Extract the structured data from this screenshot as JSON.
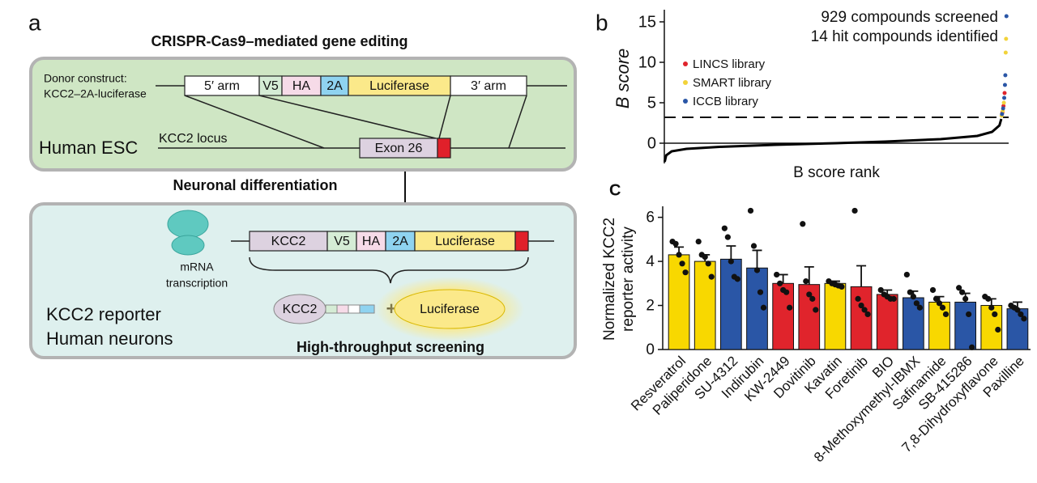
{
  "panel_a": {
    "label": "a",
    "title": "CRISPR-Cas9–mediated gene editing",
    "donor_label": [
      "Donor construct:",
      "KCC2–2A-luciferase"
    ],
    "donor_segments": [
      "5′ arm",
      "V5",
      "HA",
      "2A",
      "Luciferase",
      "3′ arm"
    ],
    "esc_label": "Human ESC",
    "locus_label": "KCC2 locus",
    "exon_label": "Exon 26",
    "step_label": "Neuronal differentiation",
    "reporter_segments": [
      "KCC2",
      "V5",
      "HA",
      "2A",
      "Luciferase"
    ],
    "mrna_label": [
      "mRNA",
      "transcription"
    ],
    "protein_label": "KCC2",
    "plus": "+",
    "luciferase_label": "Luciferase",
    "neuron_label": [
      "KCC2 reporter",
      "Human neurons"
    ],
    "screen_label": "High-throughput screening"
  },
  "chart_data": [
    {
      "type": "scatter",
      "panel_label": "b",
      "ylabel": "B score",
      "xlabel": "B score rank",
      "annotations": [
        "929 compounds screened",
        "14 hit compounds identified"
      ],
      "xlim": [
        0,
        935
      ],
      "ylim": [
        -2.5,
        16.5
      ],
      "yticks": [
        0,
        5,
        10,
        15
      ],
      "threshold": 3.2,
      "series": [
        {
          "mode": "line",
          "color": "#000000",
          "x": [
            1,
            5,
            20,
            60,
            150,
            300,
            465,
            600,
            750,
            850,
            890,
            910,
            915
          ],
          "values": [
            -2.3,
            -1.5,
            -1.0,
            -0.7,
            -0.45,
            -0.2,
            0,
            0.2,
            0.5,
            0.9,
            1.4,
            2.2,
            3.0
          ]
        },
        {
          "mode": "markers",
          "name": "LINCS library",
          "color": "#e0242c",
          "x": [
            924,
            921,
            918
          ],
          "values": [
            6.2,
            4.6,
            3.8
          ]
        },
        {
          "mode": "markers",
          "name": "SMART library",
          "color": "#f2d33a",
          "x": [
            928,
            927,
            922,
            919,
            916
          ],
          "values": [
            12.9,
            11.2,
            5.0,
            4.0,
            3.4
          ]
        },
        {
          "mode": "markers",
          "name": "ICCB library",
          "color": "#2a56a6",
          "x": [
            929,
            926,
            925,
            923,
            920,
            917
          ],
          "values": [
            15.7,
            8.4,
            7.2,
            5.6,
            4.3,
            3.6
          ]
        }
      ]
    },
    {
      "type": "bar",
      "panel_label": "C",
      "ylabel": [
        "Normalized KCC2",
        "reporter activity"
      ],
      "categories": [
        "Resveratrol",
        "Paliperidone",
        "SU-4312",
        "Indirubin",
        "KW-2449",
        "Dovitinib",
        "Kavatin",
        "Foretinib",
        "BIO",
        "8-Methoxymethyl-IBMX",
        "Safinamide",
        "SB-415286",
        "7,8-Dihydroxyflavone",
        "Paxilline"
      ],
      "values": [
        4.3,
        4.0,
        4.1,
        3.7,
        3.0,
        2.95,
        3.0,
        2.85,
        2.5,
        2.35,
        2.15,
        2.15,
        2.0,
        1.85
      ],
      "errors": [
        0.35,
        0.3,
        0.6,
        0.8,
        0.4,
        0.8,
        0.1,
        0.95,
        0.2,
        0.3,
        0.25,
        0.4,
        0.3,
        0.3
      ],
      "colors": [
        "#f8d800",
        "#f8d800",
        "#2a56a6",
        "#2a56a6",
        "#e0242c",
        "#e0242c",
        "#f8d800",
        "#e0242c",
        "#e0242c",
        "#2a56a6",
        "#f8d800",
        "#2a56a6",
        "#f8d800",
        "#2a56a6"
      ],
      "points": [
        [
          4.9,
          4.8,
          4.3,
          3.9,
          3.5
        ],
        [
          4.9,
          4.3,
          4.2,
          3.9,
          3.3
        ],
        [
          5.5,
          5.1,
          4.0,
          3.3,
          3.2
        ],
        [
          6.3,
          4.7,
          3.6,
          2.6,
          1.9
        ],
        [
          3.4,
          3.0,
          2.7,
          2.6,
          1.9
        ],
        [
          5.7,
          3.1,
          2.5,
          2.3,
          1.8
        ],
        [
          3.1,
          3.0,
          2.95,
          2.9,
          2.85
        ],
        [
          6.3,
          2.3,
          2.0,
          1.8,
          1.6
        ],
        [
          2.7,
          2.5,
          2.4,
          2.3,
          2.3
        ],
        [
          3.4,
          2.6,
          2.4,
          2.1,
          1.9
        ],
        [
          2.7,
          2.3,
          2.1,
          1.9,
          1.6
        ],
        [
          2.8,
          2.6,
          2.3,
          1.6,
          0.1
        ],
        [
          2.4,
          2.3,
          1.9,
          1.6,
          0.9
        ],
        [
          2.0,
          1.9,
          1.8,
          1.6,
          1.4
        ]
      ],
      "ylim": [
        0,
        6.5
      ],
      "yticks": [
        0,
        2,
        4,
        6
      ]
    }
  ]
}
